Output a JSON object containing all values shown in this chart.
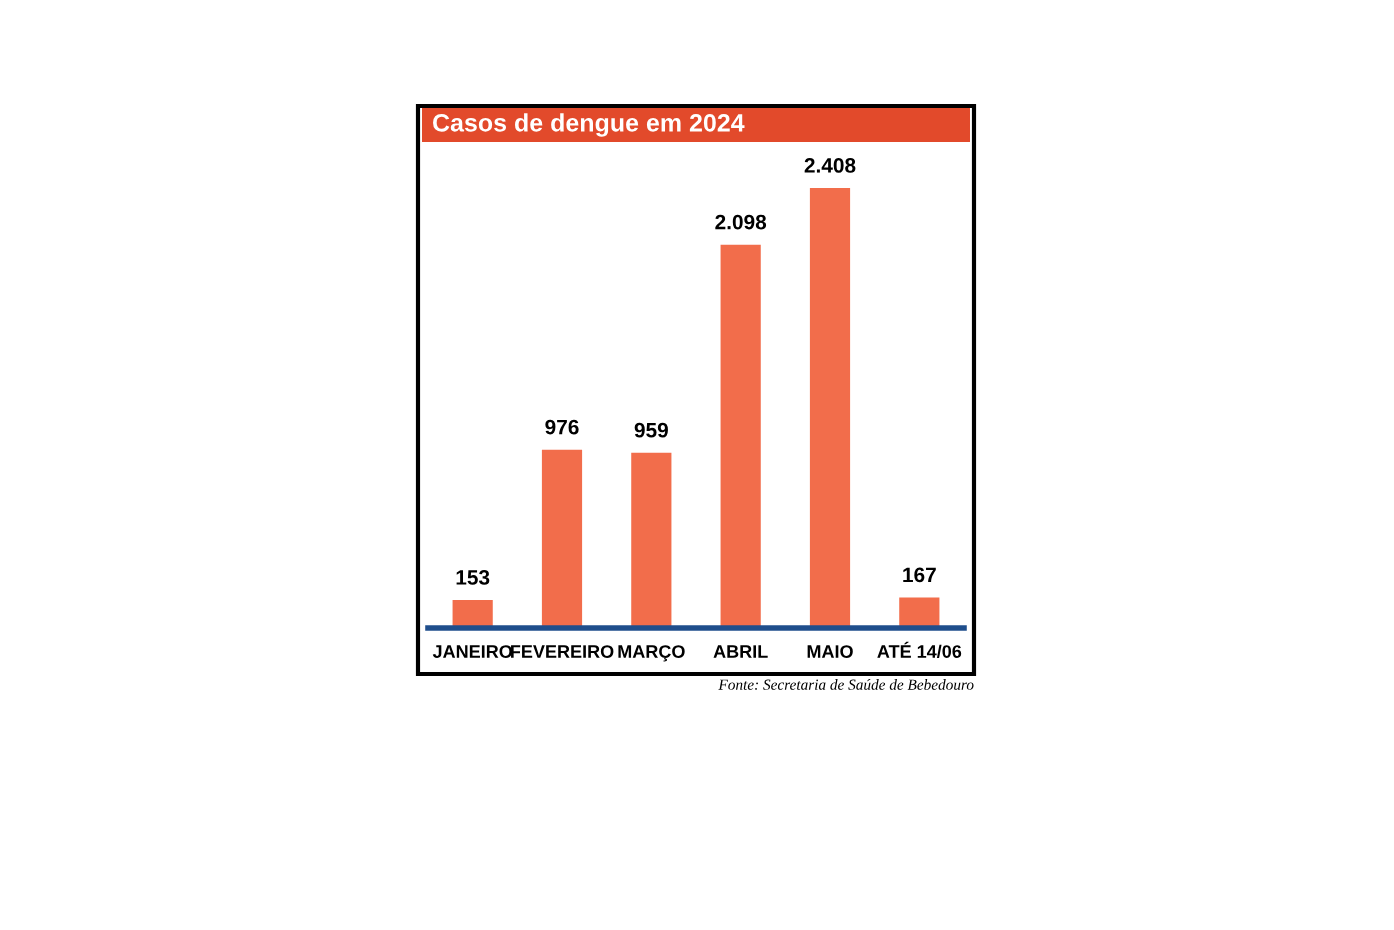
{
  "chart_data": {
    "type": "bar",
    "title": "Casos de dengue em 2024",
    "categories": [
      "JANEIRO",
      "FEVEREIRO",
      "MARÇO",
      "ABRIL",
      "MAIO",
      "ATÉ 14/06"
    ],
    "values": [
      153,
      976,
      959,
      2098,
      2408,
      167
    ],
    "value_labels": [
      "153",
      "976",
      "959",
      "2.098",
      "2.408",
      "167"
    ],
    "color": "#f26d4b",
    "grid": false,
    "legend": false,
    "annotations": [
      "Fonte: Secretaria de Saúde de Bebedouro"
    ]
  }
}
